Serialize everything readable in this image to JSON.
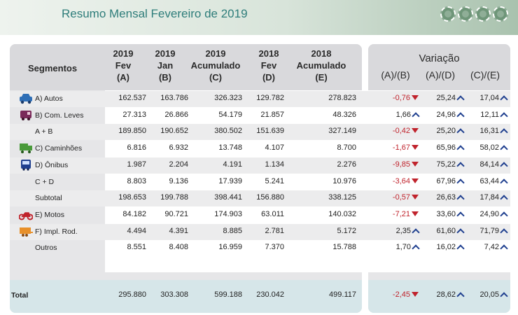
{
  "title": "Resumo Mensal Fevereiro de 2019",
  "headers": {
    "segmentos": "Segmentos",
    "cols": [
      [
        "2019",
        "Fev",
        "(A)"
      ],
      [
        "2019",
        "Jan",
        "(B)"
      ],
      [
        "2019",
        "Acumulado",
        "(C)"
      ],
      [
        "2018",
        "Fev",
        "(D)"
      ],
      [
        "2018",
        "Acumulado",
        "(E)"
      ]
    ],
    "variacao": "Variação",
    "var_cols": [
      "(A)/(B)",
      "(A)/(D)",
      "(C)/(E)"
    ]
  },
  "rows": [
    {
      "label": "A) Autos",
      "icon": "car-icon",
      "values": [
        "162.537",
        "163.786",
        "326.323",
        "129.782",
        "278.823"
      ],
      "var": [
        "-0,76",
        "25,24",
        "17,04"
      ],
      "dir": [
        "down",
        "up",
        "up"
      ]
    },
    {
      "label": "B) Com. Leves",
      "icon": "van-icon",
      "values": [
        "27.313",
        "26.866",
        "54.179",
        "21.857",
        "48.326"
      ],
      "var": [
        "1,66",
        "24,96",
        "12,11"
      ],
      "dir": [
        "up",
        "up",
        "up"
      ]
    },
    {
      "label": "A + B",
      "icon": "",
      "values": [
        "189.850",
        "190.652",
        "380.502",
        "151.639",
        "327.149"
      ],
      "var": [
        "-0,42",
        "25,20",
        "16,31"
      ],
      "dir": [
        "down",
        "up",
        "up"
      ]
    },
    {
      "label": "C) Caminhões",
      "icon": "truck-icon",
      "values": [
        "6.816",
        "6.932",
        "13.748",
        "4.107",
        "8.700"
      ],
      "var": [
        "-1,67",
        "65,96",
        "58,02"
      ],
      "dir": [
        "down",
        "up",
        "up"
      ]
    },
    {
      "label": "D) Ônibus",
      "icon": "bus-icon",
      "values": [
        "1.987",
        "2.204",
        "4.191",
        "1.134",
        "2.276"
      ],
      "var": [
        "-9,85",
        "75,22",
        "84,14"
      ],
      "dir": [
        "down",
        "up",
        "up"
      ]
    },
    {
      "label": "C + D",
      "icon": "",
      "values": [
        "8.803",
        "9.136",
        "17.939",
        "5.241",
        "10.976"
      ],
      "var": [
        "-3,64",
        "67,96",
        "63,44"
      ],
      "dir": [
        "down",
        "up",
        "up"
      ]
    },
    {
      "label": "Subtotal",
      "icon": "",
      "values": [
        "198.653",
        "199.788",
        "398.441",
        "156.880",
        "338.125"
      ],
      "var": [
        "-0,57",
        "26,63",
        "17,84"
      ],
      "dir": [
        "down",
        "up",
        "up"
      ]
    },
    {
      "label": "E) Motos",
      "icon": "motorcycle-icon",
      "values": [
        "84.182",
        "90.721",
        "174.903",
        "63.011",
        "140.032"
      ],
      "var": [
        "-7,21",
        "33,60",
        "24,90"
      ],
      "dir": [
        "down",
        "up",
        "up"
      ]
    },
    {
      "label": "F) Impl. Rod.",
      "icon": "trailer-icon",
      "values": [
        "4.494",
        "4.391",
        "8.885",
        "2.781",
        "5.172"
      ],
      "var": [
        "2,35",
        "61,60",
        "71,79"
      ],
      "dir": [
        "up",
        "up",
        "up"
      ]
    },
    {
      "label": "Outros",
      "icon": "",
      "values": [
        "8.551",
        "8.408",
        "16.959",
        "7.370",
        "15.788"
      ],
      "var": [
        "1,70",
        "16,02",
        "7,42"
      ],
      "dir": [
        "up",
        "up",
        "up"
      ]
    }
  ],
  "total": {
    "label": "Total",
    "values": [
      "295.880",
      "303.308",
      "599.188",
      "230.042",
      "499.117"
    ],
    "var": [
      "-2,45",
      "28,62",
      "20,05"
    ],
    "dir": [
      "down",
      "up",
      "up"
    ]
  },
  "colors": {
    "title": "#2e7d7a",
    "negative": "#c0232c",
    "arrow_up": "#1f3f8f",
    "car": "#2f6fb6",
    "van": "#7a2a5a",
    "truck": "#4a9a3a",
    "bus": "#1f3f8f",
    "moto": "#c0232c",
    "trailer": "#e8902a"
  }
}
